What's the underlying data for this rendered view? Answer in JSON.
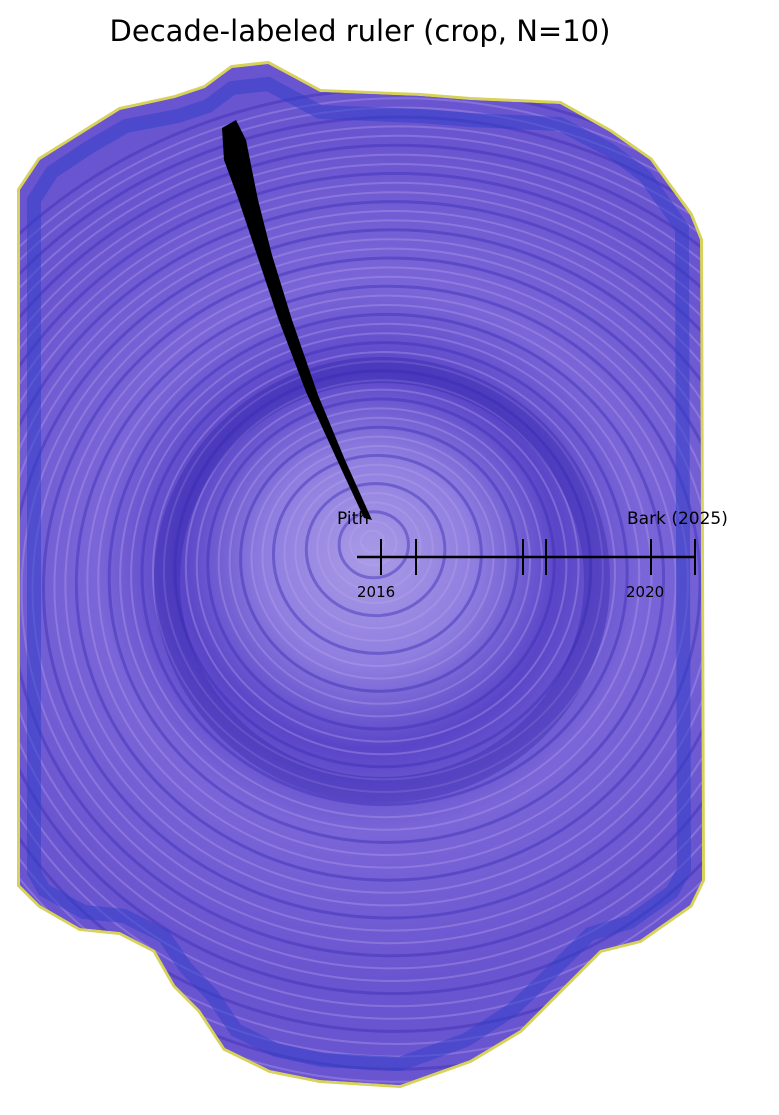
{
  "title": "Decade-labeled ruler (crop, N=10)",
  "ruler": {
    "start_label": "Pith",
    "end_label": "Bark (2025)",
    "tick_labels": [
      "2016",
      "2020"
    ],
    "color": "#000000"
  },
  "colors": {
    "wood_purple": "#6a52d6",
    "wood_light": "#b9a6ee",
    "ring_dark": "#3b2fb5",
    "bark_yellow": "#f2f08a",
    "crack": "#000000"
  }
}
